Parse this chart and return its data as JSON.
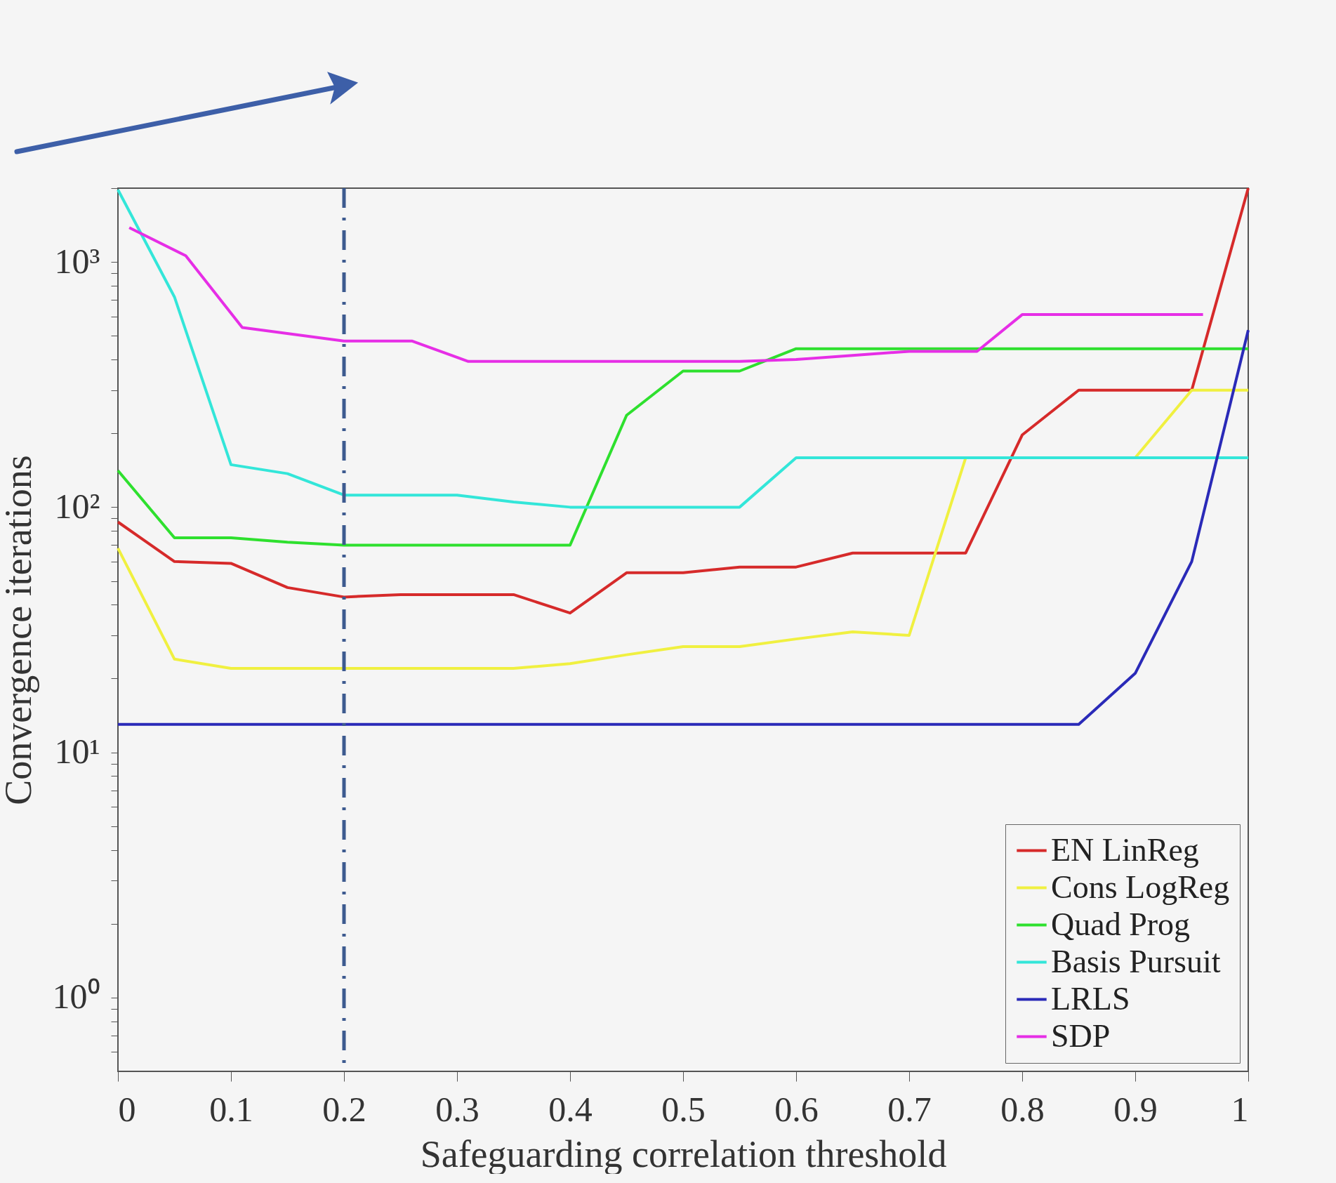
{
  "chart_data": {
    "type": "line",
    "xlabel": "Safeguarding correlation threshold",
    "ylabel": "Convergence iterations",
    "log": "y",
    "grid": false,
    "legend": "bottom right",
    "line_style": "solid",
    "marker": "none",
    "xlim": [
      0,
      1
    ],
    "xticks": [
      0,
      0.1,
      0.2,
      0.3,
      0.4,
      0.5,
      0.6,
      0.7,
      0.8,
      0.9,
      1
    ],
    "ylim": [
      0.5,
      2000
    ],
    "yticks": [
      {
        "value": 0.6,
        "label": null
      },
      {
        "value": 0.7,
        "label": null
      },
      {
        "value": 0.8,
        "label": null
      },
      {
        "value": 0.9,
        "label": null
      },
      {
        "value": 1,
        "label": "10⁰"
      },
      {
        "value": 2,
        "label": null
      },
      {
        "value": 3,
        "label": null
      },
      {
        "value": 4,
        "label": null
      },
      {
        "value": 5,
        "label": null
      },
      {
        "value": 6,
        "label": null
      },
      {
        "value": 7,
        "label": null
      },
      {
        "value": 8,
        "label": null
      },
      {
        "value": 9,
        "label": null
      },
      {
        "value": 10,
        "label": "10¹"
      },
      {
        "value": 20,
        "label": null
      },
      {
        "value": 30,
        "label": null
      },
      {
        "value": 40,
        "label": null
      },
      {
        "value": 50,
        "label": null
      },
      {
        "value": 60,
        "label": null
      },
      {
        "value": 70,
        "label": null
      },
      {
        "value": 80,
        "label": null
      },
      {
        "value": 90,
        "label": null
      },
      {
        "value": 100,
        "label": "10²"
      },
      {
        "value": 200,
        "label": null
      },
      {
        "value": 300,
        "label": null
      },
      {
        "value": 400,
        "label": null
      },
      {
        "value": 500,
        "label": null
      },
      {
        "value": 600,
        "label": null
      },
      {
        "value": 700,
        "label": null
      },
      {
        "value": 800,
        "label": null
      },
      {
        "value": 900,
        "label": null
      },
      {
        "value": 1000,
        "label": "10³"
      },
      {
        "value": 2000,
        "label": null
      }
    ],
    "x": [
      0,
      0.05,
      0.1,
      0.15,
      0.2,
      0.25,
      0.3,
      0.35,
      0.4,
      0.45,
      0.5,
      0.55,
      0.6,
      0.65,
      0.7,
      0.75,
      0.8,
      0.85,
      0.9,
      0.95,
      1
    ],
    "series": [
      {
        "name": "EN LinReg",
        "color": "#d62a2a",
        "values": [
          87,
          60,
          59,
          47,
          43,
          44,
          44,
          44,
          37,
          54,
          54,
          57,
          57,
          65,
          65,
          65,
          197,
          300,
          300,
          300,
          2000
        ]
      },
      {
        "name": "Cons LogReg",
        "color": "#f0f040",
        "values": [
          68,
          24,
          22,
          22,
          22,
          22,
          22,
          22,
          23,
          25,
          27,
          27,
          29,
          31,
          30,
          159,
          null,
          null,
          159,
          300,
          300
        ]
      },
      {
        "name": "Quad Prog",
        "color": "#2ee02e",
        "values": [
          141,
          75,
          75,
          72,
          70,
          70,
          70,
          70,
          70,
          237,
          359,
          359,
          443,
          443,
          443,
          443,
          443,
          443,
          443,
          443,
          443
        ]
      },
      {
        "name": "Basis Pursuit",
        "color": "#33e6d9",
        "values": [
          1970,
          720,
          149,
          137,
          112,
          112,
          112,
          105,
          100,
          100,
          100,
          100,
          159,
          159,
          159,
          159,
          159,
          159,
          159,
          159,
          159
        ]
      },
      {
        "name": "LRLS",
        "color": "#2a2ab8",
        "values": [
          13,
          13,
          13,
          13,
          13,
          13,
          13,
          13,
          13,
          13,
          13,
          13,
          13,
          13,
          13,
          13,
          13,
          13,
          21,
          60,
          527
        ]
      },
      {
        "name": "SDP",
        "color": "#e62ee6",
        "x": [
          0.01,
          0.06,
          0.11,
          0.2,
          0.26,
          0.31,
          0.55,
          0.6,
          0.7,
          0.76,
          0.8,
          0.96
        ],
        "values": [
          1380,
          1060,
          540,
          476,
          476,
          393,
          393,
          400,
          432,
          432,
          610,
          610
        ]
      }
    ],
    "ref_lines": [
      {
        "axis": "x",
        "value": 0.2,
        "color": "#3d5a8f",
        "line_style": "dashed"
      }
    ]
  }
}
